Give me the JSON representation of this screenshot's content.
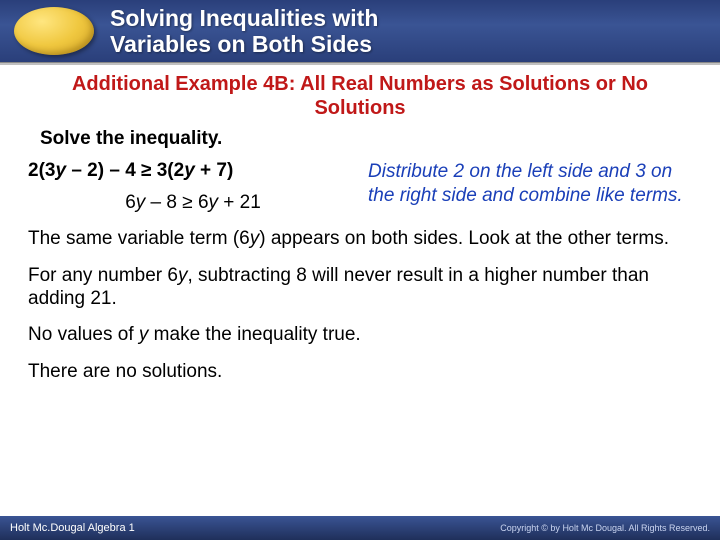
{
  "header": {
    "title_line1": "Solving Inequalities with",
    "title_line2": "Variables on Both Sides"
  },
  "subtitle": "Additional Example 4B: All Real Numbers as Solutions or No Solutions",
  "solve_label": "Solve the inequality.",
  "eq1_a": "2(3",
  "eq1_b": "y",
  "eq1_c": " – 2) – 4 ≥ 3(2",
  "eq1_d": "y",
  "eq1_e": " + 7)",
  "eq2_a": "6",
  "eq2_b": "y",
  "eq2_c": " – 8 ≥ 6",
  "eq2_d": "y",
  "eq2_e": " + 21",
  "hint": "Distribute 2 on the left side and 3 on the right side and combine like terms.",
  "p1_a": "The same variable term (6",
  "p1_b": "y",
  "p1_c": ") appears on both sides. Look at the other terms.",
  "p2_a": "For any number 6",
  "p2_b": "y",
  "p2_c": ", subtracting 8 will never result in a higher number than adding 21.",
  "p3_a": "No values of ",
  "p3_b": "y",
  "p3_c": " make the inequality true.",
  "p4": "There are no solutions.",
  "footer": {
    "left": "Holt Mc.Dougal Algebra 1",
    "right": "Copyright © by Holt Mc Dougal. All Rights Reserved."
  },
  "colors": {
    "header_bg": "#2a3f7a",
    "subtitle_color": "#c01818",
    "hint_color": "#1a3fb8",
    "oval_fill": "#f0c840"
  }
}
